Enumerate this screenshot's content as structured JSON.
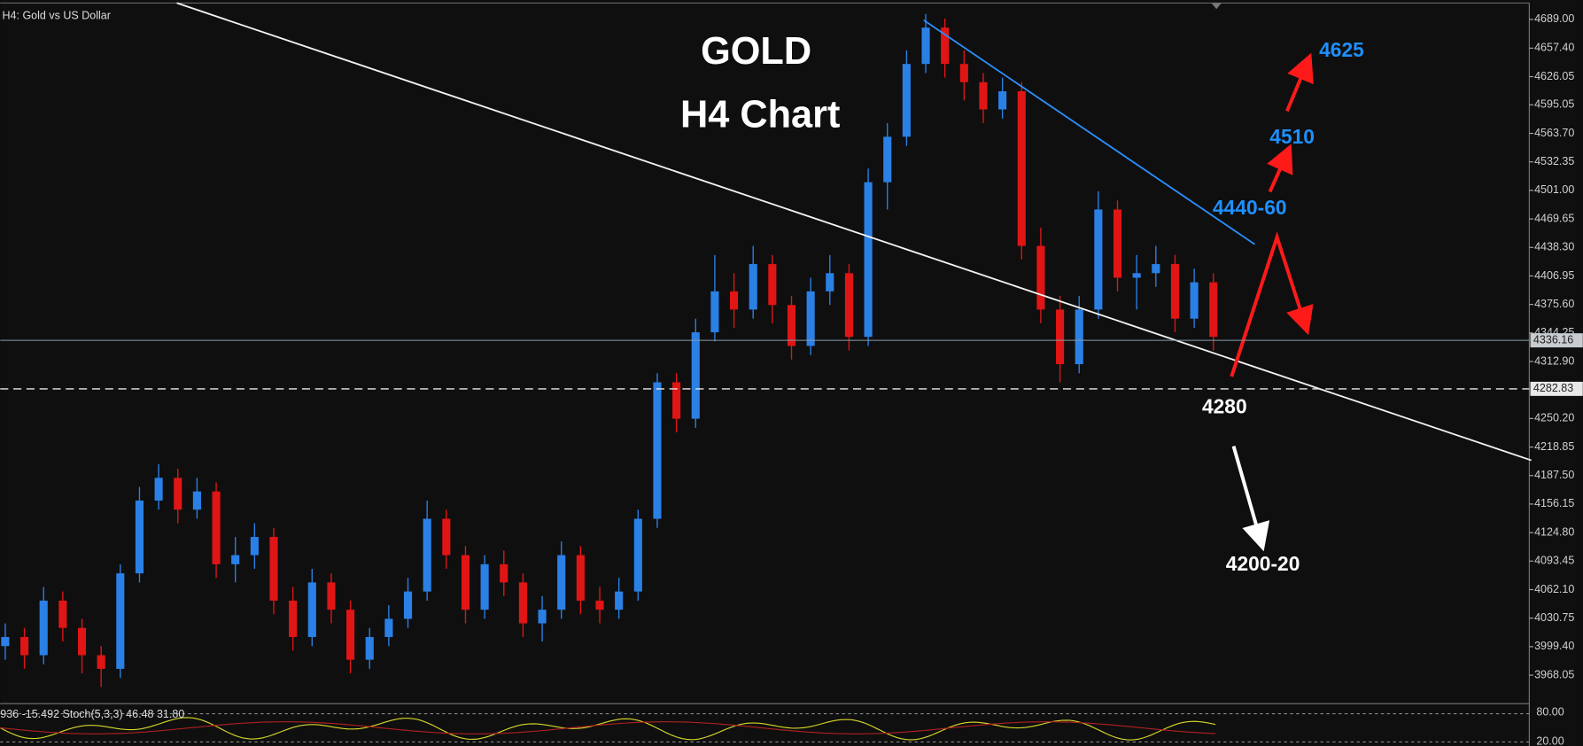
{
  "chart_data": {
    "type": "candlestick",
    "symbol_label": "H4:  Gold vs US Dollar",
    "title": "GOLD",
    "subtitle": "H4 Chart",
    "up_color": "#2b80e6",
    "down_color": "#e01515",
    "ylim": [
      3939,
      4707
    ],
    "yticks": [
      {
        "value": 4689.0,
        "label": "4689.00"
      },
      {
        "value": 4657.4,
        "label": "4657.40"
      },
      4626.05,
      4595.05,
      {
        "value": 4563.7,
        "label": "4563.70"
      },
      4532.35,
      {
        "value": 4501.0,
        "label": "4501.00"
      },
      4469.65,
      {
        "value": 4438.3,
        "label": "4438.30"
      },
      4406.95,
      {
        "value": 4375.6,
        "label": "4375.60"
      },
      4344.25,
      {
        "value": 4312.9,
        "label": "4312.90"
      },
      {
        "value": 4250.2,
        "label": "4250.20"
      },
      4218.85,
      {
        "value": 4187.5,
        "label": "4187.50"
      },
      4156.15,
      {
        "value": 4124.8,
        "label": "4124.80"
      },
      4093.45,
      {
        "value": 4062.1,
        "label": "4062.10"
      },
      4030.75,
      {
        "value": 3999.4,
        "label": "3999.40"
      },
      3968.05
    ],
    "open": [
      4000,
      4010,
      3990,
      4050,
      4020,
      3990,
      3975,
      4080,
      4160,
      4185,
      4150,
      4170,
      4090,
      4100,
      4120,
      4050,
      4010,
      4070,
      4040,
      3985,
      4010,
      4030,
      4060,
      4140,
      4100,
      4040,
      4090,
      4070,
      4025,
      4040,
      4100,
      4050,
      4040,
      4060,
      4140,
      4290,
      4250,
      4345,
      4390,
      4370,
      4420,
      4375,
      4330,
      4390,
      4410,
      4340,
      4510,
      4560,
      4640,
      4680,
      4640,
      4620,
      4590,
      4610,
      4440,
      4370,
      4310,
      4370,
      4480,
      4405,
      4410,
      4420,
      4360,
      4400
    ],
    "high": [
      4025,
      4020,
      4065,
      4060,
      4030,
      4000,
      4090,
      4175,
      4200,
      4195,
      4185,
      4180,
      4120,
      4135,
      4130,
      4065,
      4085,
      4080,
      4050,
      4020,
      4045,
      4075,
      4160,
      4150,
      4110,
      4100,
      4105,
      4080,
      4055,
      4115,
      4110,
      4065,
      4075,
      4150,
      4300,
      4300,
      4360,
      4430,
      4410,
      4440,
      4430,
      4385,
      4405,
      4430,
      4420,
      4525,
      4575,
      4655,
      4695,
      4690,
      4655,
      4630,
      4625,
      4620,
      4460,
      4385,
      4385,
      4500,
      4490,
      4430,
      4440,
      4430,
      4415,
      4410
    ],
    "low": [
      3985,
      3975,
      3980,
      4005,
      3970,
      3955,
      3965,
      4070,
      4150,
      4135,
      4140,
      4075,
      4070,
      4085,
      4035,
      3995,
      4000,
      4025,
      3970,
      3975,
      4000,
      4020,
      4050,
      4085,
      4025,
      4030,
      4055,
      4010,
      4005,
      4030,
      4035,
      4025,
      4030,
      4050,
      4130,
      4235,
      4240,
      4335,
      4350,
      4360,
      4355,
      4315,
      4320,
      4375,
      4325,
      4330,
      4480,
      4550,
      4630,
      4625,
      4600,
      4575,
      4580,
      4425,
      4355,
      4290,
      4300,
      4360,
      4390,
      4370,
      4395,
      4345,
      4350,
      4325
    ],
    "close": [
      4010,
      3990,
      4050,
      4020,
      3990,
      3975,
      4080,
      4160,
      4185,
      4150,
      4170,
      4090,
      4100,
      4120,
      4050,
      4010,
      4070,
      4040,
      3985,
      4010,
      4030,
      4060,
      4140,
      4100,
      4040,
      4090,
      4070,
      4025,
      4040,
      4100,
      4050,
      4040,
      4060,
      4140,
      4290,
      4250,
      4345,
      4390,
      4370,
      4420,
      4375,
      4330,
      4390,
      4410,
      4340,
      4510,
      4560,
      4640,
      4680,
      4640,
      4620,
      4590,
      4610,
      4440,
      4370,
      4310,
      4370,
      4480,
      4405,
      4410,
      4420,
      4360,
      4400,
      4340
    ],
    "current_price": 4336.16,
    "level_line": 4282.83,
    "annotations": {
      "t4625": "4625",
      "t4510": "4510",
      "t4440": "4440-60",
      "t4280": "4280",
      "t4200": "4200-20"
    },
    "indicator": {
      "label": "936 -15.492 Stoch(5,3,3) 46.48 31.80",
      "upper": "80.00",
      "lower": "20.00"
    }
  }
}
